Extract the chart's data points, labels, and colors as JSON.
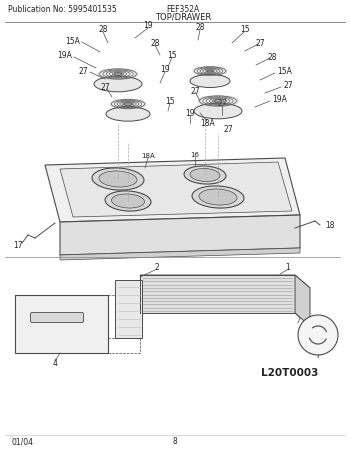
{
  "pub_no": "Publication No: 5995401535",
  "model": "FEF352A",
  "section": "TOP/DRAWER",
  "footer_left": "01/04",
  "footer_center": "8",
  "logo": "L20T0003",
  "bg_color": "#ffffff",
  "line_color": "#4a4a4a",
  "light_line": "#888888",
  "text_color": "#222222",
  "label_fontsize": 5.5,
  "header_fontsize": 6
}
